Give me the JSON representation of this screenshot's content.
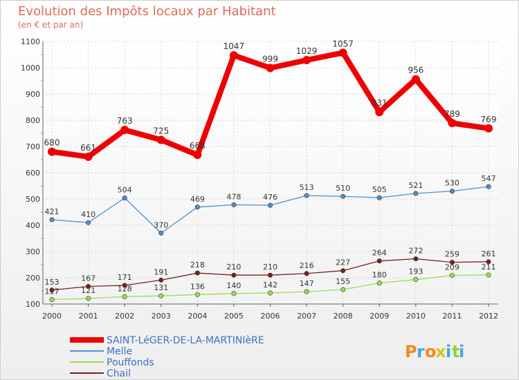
{
  "chart_data": {
    "type": "line",
    "title": "Evolution des Impôts locaux par Habitant",
    "subtitle": "(en € et par an)",
    "x": [
      "2000",
      "2001",
      "2002",
      "2003",
      "2004",
      "2005",
      "2006",
      "2007",
      "2008",
      "2009",
      "2010",
      "2011",
      "2012"
    ],
    "ylim": [
      100,
      1100
    ],
    "yticks": [
      100,
      200,
      300,
      400,
      500,
      600,
      700,
      800,
      900,
      1000,
      1100
    ],
    "grid": true,
    "legend_position": "bottom-left",
    "series": [
      {
        "name": "SAINT-LéGER-DE-LA-MARTINIèRE",
        "color": "#ee0000",
        "values": [
          680,
          661,
          763,
          725,
          668,
          1047,
          999,
          1029,
          1057,
          831,
          956,
          789,
          769
        ]
      },
      {
        "name": "Melle",
        "color": "#4f8fd0",
        "values": [
          421,
          410,
          504,
          370,
          469,
          478,
          476,
          513,
          510,
          505,
          521,
          530,
          547
        ]
      },
      {
        "name": "Pouffonds",
        "color": "#99dd55",
        "values": [
          117,
          121,
          128,
          131,
          136,
          140,
          142,
          147,
          155,
          180,
          193,
          209,
          211
        ]
      },
      {
        "name": "Chail",
        "color": "#7a1f1f",
        "values": [
          153,
          167,
          171,
          191,
          218,
          210,
          210,
          216,
          227,
          264,
          272,
          259,
          261
        ]
      }
    ]
  },
  "brand": {
    "text": "Proxiti"
  }
}
